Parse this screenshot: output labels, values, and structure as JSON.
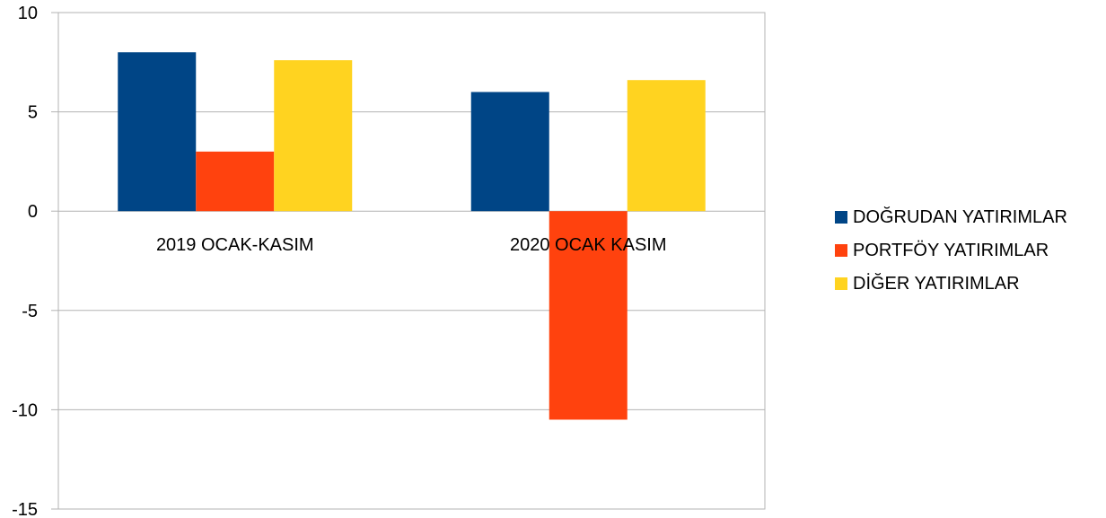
{
  "chart_data": {
    "type": "bar",
    "categories": [
      "2019 OCAK-KASIM",
      "2020 OCAK KASIM"
    ],
    "series": [
      {
        "name": "DOĞRUDAN YATIRIMLAR",
        "values": [
          8.0,
          6.0
        ],
        "color": "#004586"
      },
      {
        "name": "PORTFÖY YATIRIMLAR",
        "values": [
          3.0,
          -10.5
        ],
        "color": "#ff420e"
      },
      {
        "name": "DİĞER YATIRIMLAR",
        "values": [
          7.6,
          6.6
        ],
        "color": "#ffd320"
      }
    ],
    "ylim": [
      -15,
      10
    ],
    "yticks": [
      10,
      5,
      0,
      -5,
      -10,
      -15
    ],
    "ytick_labels": [
      "10",
      "5",
      "0",
      "-5",
      "-10",
      "-15"
    ],
    "grid": true,
    "legend_position": "right",
    "title": "",
    "xlabel": "",
    "ylabel": ""
  }
}
